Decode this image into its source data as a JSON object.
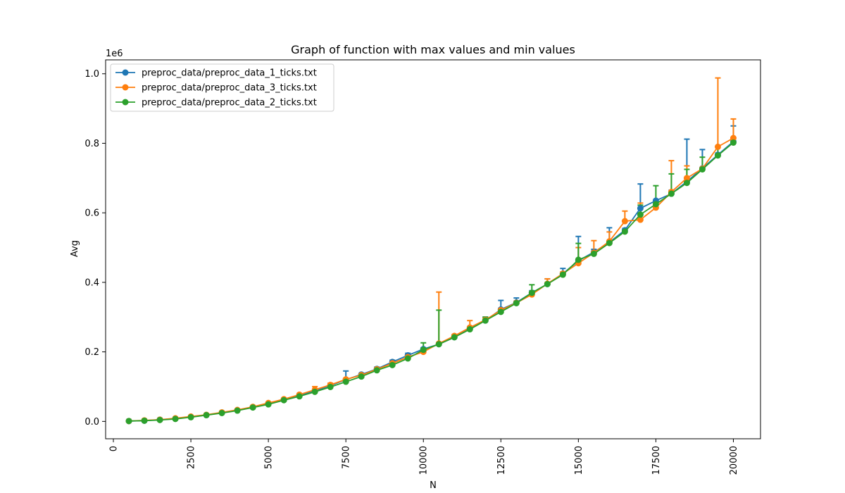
{
  "chart_data": {
    "type": "line",
    "title": "Graph of function with max values and min values",
    "xlabel": "N",
    "ylabel": "Avg",
    "y_offset_label": "1e6",
    "xlim": [
      -250,
      20875
    ],
    "ylim": [
      -0.05,
      1.04
    ],
    "x_ticks": [
      0,
      2500,
      5000,
      7500,
      10000,
      12500,
      15000,
      17500,
      20000
    ],
    "x_tick_labels": [
      "0",
      "2500",
      "5000",
      "7500",
      "10000",
      "12500",
      "15000",
      "17500",
      "20000"
    ],
    "y_ticks": [
      0.0,
      0.2,
      0.4,
      0.6,
      0.8,
      1.0
    ],
    "y_tick_labels": [
      "0.0",
      "0.2",
      "0.4",
      "0.6",
      "0.8",
      "1.0"
    ],
    "grid": false,
    "legend_position": "top-left",
    "x": [
      500,
      1000,
      1500,
      2000,
      2500,
      3000,
      3500,
      4000,
      4500,
      5000,
      5500,
      6000,
      6500,
      7000,
      7500,
      8000,
      8500,
      9000,
      9500,
      10000,
      10500,
      11000,
      11500,
      12000,
      12500,
      13000,
      13500,
      14000,
      14500,
      15000,
      15500,
      16000,
      16500,
      17000,
      17500,
      18000,
      18500,
      19000,
      19500,
      20000
    ],
    "series": [
      {
        "name": "preproc_data/preproc_data_1_ticks.txt",
        "color": "#1f77b4",
        "values": [
          0.001,
          0.002,
          0.005,
          0.008,
          0.013,
          0.018,
          0.025,
          0.032,
          0.041,
          0.051,
          0.062,
          0.074,
          0.088,
          0.103,
          0.12,
          0.135,
          0.151,
          0.171,
          0.19,
          0.208,
          0.222,
          0.242,
          0.267,
          0.29,
          0.322,
          0.342,
          0.37,
          0.395,
          0.425,
          0.462,
          0.487,
          0.515,
          0.55,
          0.613,
          0.635,
          0.655,
          0.69,
          0.728,
          0.767,
          0.805
        ],
        "max": [
          0.001,
          0.002,
          0.005,
          0.008,
          0.013,
          0.018,
          0.025,
          0.032,
          0.041,
          0.051,
          0.062,
          0.074,
          0.088,
          0.103,
          0.145,
          0.138,
          0.156,
          0.176,
          0.196,
          0.212,
          0.226,
          0.245,
          0.272,
          0.3,
          0.348,
          0.355,
          0.376,
          0.41,
          0.44,
          0.532,
          0.495,
          0.557,
          0.555,
          0.683,
          0.638,
          0.665,
          0.812,
          0.782,
          0.772,
          0.85
        ],
        "min": [
          0.001,
          0.002,
          0.005,
          0.008,
          0.013,
          0.018,
          0.025,
          0.032,
          0.041,
          0.051,
          0.062,
          0.074,
          0.088,
          0.103,
          0.12,
          0.135,
          0.151,
          0.171,
          0.19,
          0.208,
          0.222,
          0.242,
          0.267,
          0.29,
          0.322,
          0.342,
          0.37,
          0.395,
          0.425,
          0.462,
          0.487,
          0.515,
          0.55,
          0.613,
          0.635,
          0.655,
          0.69,
          0.728,
          0.767,
          0.805
        ]
      },
      {
        "name": "preproc_data/preproc_data_3_ticks.txt",
        "color": "#ff7f0e",
        "values": [
          0.001,
          0.003,
          0.005,
          0.009,
          0.014,
          0.019,
          0.026,
          0.033,
          0.042,
          0.053,
          0.064,
          0.077,
          0.091,
          0.105,
          0.121,
          0.133,
          0.15,
          0.167,
          0.185,
          0.2,
          0.224,
          0.246,
          0.27,
          0.292,
          0.32,
          0.341,
          0.365,
          0.396,
          0.425,
          0.455,
          0.485,
          0.518,
          0.576,
          0.58,
          0.615,
          0.66,
          0.7,
          0.727,
          0.79,
          0.815
        ],
        "max": [
          0.001,
          0.003,
          0.005,
          0.009,
          0.015,
          0.019,
          0.026,
          0.033,
          0.042,
          0.053,
          0.064,
          0.078,
          0.1,
          0.11,
          0.123,
          0.135,
          0.152,
          0.17,
          0.188,
          0.21,
          0.372,
          0.25,
          0.29,
          0.298,
          0.325,
          0.346,
          0.372,
          0.41,
          0.43,
          0.5,
          0.52,
          0.545,
          0.605,
          0.628,
          0.62,
          0.75,
          0.735,
          0.73,
          0.988,
          0.87
        ],
        "min": [
          0.001,
          0.003,
          0.005,
          0.009,
          0.014,
          0.019,
          0.026,
          0.033,
          0.042,
          0.053,
          0.064,
          0.077,
          0.091,
          0.105,
          0.121,
          0.133,
          0.15,
          0.167,
          0.185,
          0.2,
          0.224,
          0.246,
          0.27,
          0.292,
          0.32,
          0.341,
          0.365,
          0.396,
          0.425,
          0.455,
          0.485,
          0.518,
          0.576,
          0.58,
          0.615,
          0.66,
          0.7,
          0.727,
          0.79,
          0.815
        ]
      },
      {
        "name": "preproc_data/preproc_data_2_ticks.txt",
        "color": "#2ca02c",
        "values": [
          0.001,
          0.002,
          0.004,
          0.007,
          0.012,
          0.018,
          0.024,
          0.031,
          0.04,
          0.049,
          0.061,
          0.072,
          0.085,
          0.099,
          0.114,
          0.129,
          0.147,
          0.162,
          0.181,
          0.206,
          0.222,
          0.242,
          0.265,
          0.29,
          0.315,
          0.34,
          0.37,
          0.395,
          0.422,
          0.465,
          0.482,
          0.513,
          0.546,
          0.595,
          0.625,
          0.655,
          0.686,
          0.725,
          0.765,
          0.802
        ],
        "max": [
          0.001,
          0.002,
          0.004,
          0.007,
          0.012,
          0.018,
          0.024,
          0.031,
          0.04,
          0.049,
          0.061,
          0.072,
          0.085,
          0.099,
          0.114,
          0.129,
          0.147,
          0.162,
          0.181,
          0.226,
          0.32,
          0.242,
          0.265,
          0.3,
          0.315,
          0.34,
          0.393,
          0.398,
          0.422,
          0.512,
          0.482,
          0.513,
          0.546,
          0.622,
          0.678,
          0.712,
          0.725,
          0.76,
          0.792,
          0.805
        ],
        "min": [
          0.001,
          0.002,
          0.004,
          0.007,
          0.012,
          0.018,
          0.024,
          0.031,
          0.04,
          0.049,
          0.061,
          0.072,
          0.085,
          0.099,
          0.114,
          0.129,
          0.147,
          0.162,
          0.181,
          0.206,
          0.222,
          0.242,
          0.265,
          0.29,
          0.315,
          0.34,
          0.37,
          0.395,
          0.422,
          0.465,
          0.482,
          0.513,
          0.546,
          0.595,
          0.625,
          0.655,
          0.686,
          0.725,
          0.765,
          0.802
        ]
      }
    ]
  }
}
